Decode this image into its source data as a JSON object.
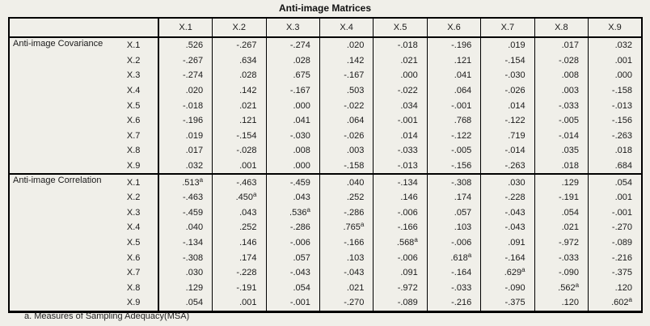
{
  "colors": {
    "background": "#f0efe9",
    "border": "#000000",
    "text": "#1a1a1a"
  },
  "chart_data": {
    "type": "table",
    "title": "Anti-image Matrices",
    "footnote": "a. Measures of Sampling Adequacy(MSA)",
    "col_headers": [
      "X.1",
      "X.2",
      "X.3",
      "X.4",
      "X.5",
      "X.6",
      "X.7",
      "X.8",
      "X.9"
    ],
    "sections": [
      {
        "label": "Anti-image Covariance",
        "diagonal_marker": null,
        "rows": [
          {
            "label": "X.1",
            "values": [
              ".526",
              "-.267",
              "-.274",
              ".020",
              "-.018",
              "-.196",
              ".019",
              ".017",
              ".032"
            ]
          },
          {
            "label": "X.2",
            "values": [
              "-.267",
              ".634",
              ".028",
              ".142",
              ".021",
              ".121",
              "-.154",
              "-.028",
              ".001"
            ]
          },
          {
            "label": "X.3",
            "values": [
              "-.274",
              ".028",
              ".675",
              "-.167",
              ".000",
              ".041",
              "-.030",
              ".008",
              ".000"
            ]
          },
          {
            "label": "X.4",
            "values": [
              ".020",
              ".142",
              "-.167",
              ".503",
              "-.022",
              ".064",
              "-.026",
              ".003",
              "-.158"
            ]
          },
          {
            "label": "X.5",
            "values": [
              "-.018",
              ".021",
              ".000",
              "-.022",
              ".034",
              "-.001",
              ".014",
              "-.033",
              "-.013"
            ]
          },
          {
            "label": "X.6",
            "values": [
              "-.196",
              ".121",
              ".041",
              ".064",
              "-.001",
              ".768",
              "-.122",
              "-.005",
              "-.156"
            ]
          },
          {
            "label": "X.7",
            "values": [
              ".019",
              "-.154",
              "-.030",
              "-.026",
              ".014",
              "-.122",
              ".719",
              "-.014",
              "-.263"
            ]
          },
          {
            "label": "X.8",
            "values": [
              ".017",
              "-.028",
              ".008",
              ".003",
              "-.033",
              "-.005",
              "-.014",
              ".035",
              ".018"
            ]
          },
          {
            "label": "X.9",
            "values": [
              ".032",
              ".001",
              ".000",
              "-.158",
              "-.013",
              "-.156",
              "-.263",
              ".018",
              ".684"
            ]
          }
        ]
      },
      {
        "label": "Anti-image Correlation",
        "diagonal_marker": "a",
        "rows": [
          {
            "label": "X.1",
            "values": [
              ".513",
              "-.463",
              "-.459",
              ".040",
              "-.134",
              "-.308",
              ".030",
              ".129",
              ".054"
            ]
          },
          {
            "label": "X.2",
            "values": [
              "-.463",
              ".450",
              ".043",
              ".252",
              ".146",
              ".174",
              "-.228",
              "-.191",
              ".001"
            ]
          },
          {
            "label": "X.3",
            "values": [
              "-.459",
              ".043",
              ".536",
              "-.286",
              "-.006",
              ".057",
              "-.043",
              ".054",
              "-.001"
            ]
          },
          {
            "label": "X.4",
            "values": [
              ".040",
              ".252",
              "-.286",
              ".765",
              "-.166",
              ".103",
              "-.043",
              ".021",
              "-.270"
            ]
          },
          {
            "label": "X.5",
            "values": [
              "-.134",
              ".146",
              "-.006",
              "-.166",
              ".568",
              "-.006",
              ".091",
              "-.972",
              "-.089"
            ]
          },
          {
            "label": "X.6",
            "values": [
              "-.308",
              ".174",
              ".057",
              ".103",
              "-.006",
              ".618",
              "-.164",
              "-.033",
              "-.216"
            ]
          },
          {
            "label": "X.7",
            "values": [
              ".030",
              "-.228",
              "-.043",
              "-.043",
              ".091",
              "-.164",
              ".629",
              "-.090",
              "-.375"
            ]
          },
          {
            "label": "X.8",
            "values": [
              ".129",
              "-.191",
              ".054",
              ".021",
              "-.972",
              "-.033",
              "-.090",
              ".562",
              ".120"
            ]
          },
          {
            "label": "X.9",
            "values": [
              ".054",
              ".001",
              "-.001",
              "-.270",
              "-.089",
              "-.216",
              "-.375",
              ".120",
              ".602"
            ]
          }
        ]
      }
    ]
  }
}
